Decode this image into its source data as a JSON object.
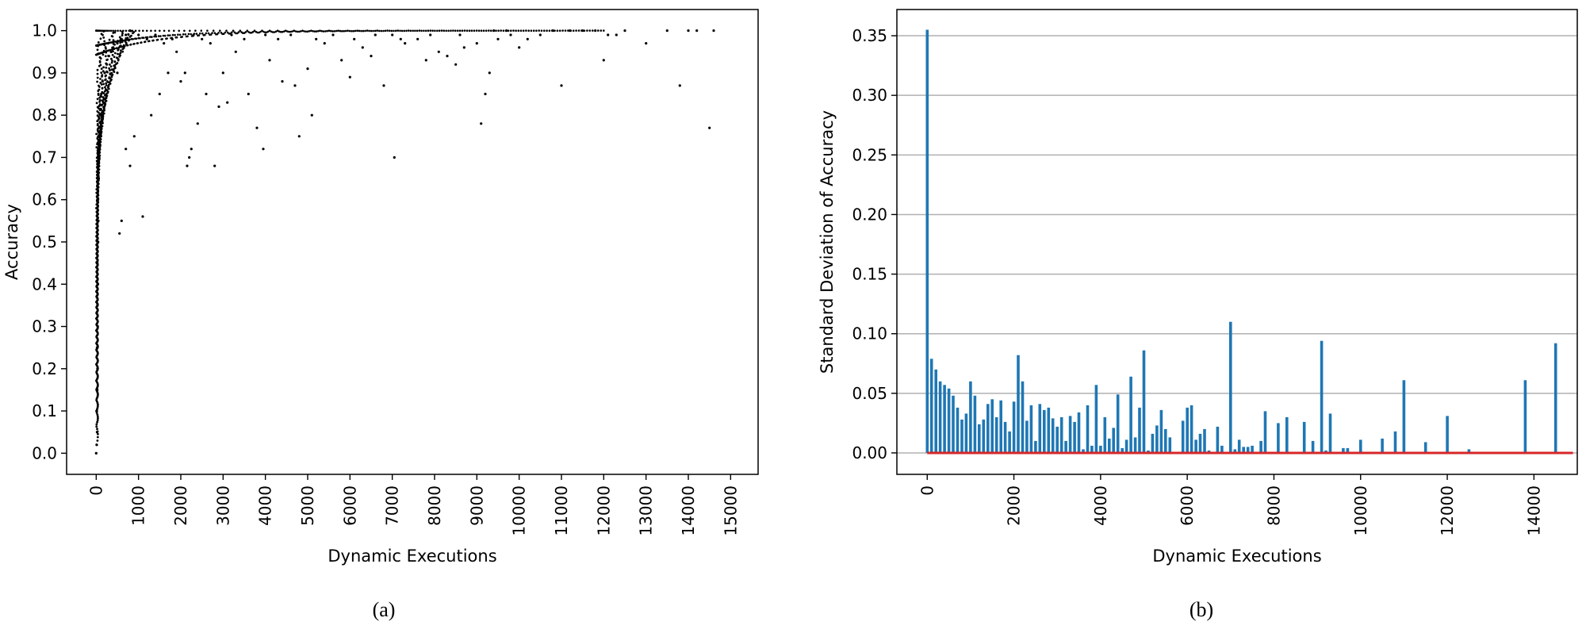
{
  "chart_data": [
    {
      "type": "scatter",
      "caption": "(a)",
      "xlabel": "Dynamic Executions",
      "ylabel": "Accuracy",
      "xlim": [
        -700,
        15650
      ],
      "ylim": [
        -0.05,
        1.05
      ],
      "xticks": [
        0,
        1000,
        2000,
        3000,
        4000,
        5000,
        6000,
        7000,
        8000,
        9000,
        10000,
        11000,
        12000,
        13000,
        14000,
        15000
      ],
      "xtick_labels": [
        "0",
        "1000",
        "2000",
        "3000",
        "4000",
        "5000",
        "6000",
        "7000",
        "8000",
        "9000",
        "10000",
        "11000",
        "12000",
        "13000",
        "14000",
        "15000"
      ],
      "yticks": [
        0.0,
        0.1,
        0.2,
        0.3,
        0.4,
        0.5,
        0.6,
        0.7,
        0.8,
        0.9,
        1.0
      ],
      "ytick_labels": [
        "0.0",
        "0.1",
        "0.2",
        "0.3",
        "0.4",
        "0.5",
        "0.6",
        "0.7",
        "0.8",
        "0.9",
        "1.0"
      ],
      "grid": false,
      "marker_color": "#000000",
      "points": [
        [
          0,
          0.0
        ],
        [
          10,
          0.02
        ],
        [
          20,
          0.05
        ],
        [
          15,
          0.1
        ],
        [
          25,
          0.15
        ],
        [
          30,
          0.2
        ],
        [
          20,
          0.25
        ],
        [
          35,
          0.3
        ],
        [
          30,
          0.35
        ],
        [
          40,
          0.4
        ],
        [
          25,
          0.45
        ],
        [
          45,
          0.5
        ],
        [
          50,
          0.55
        ],
        [
          40,
          0.6
        ],
        [
          60,
          0.65
        ],
        [
          70,
          0.7
        ],
        [
          80,
          0.75
        ],
        [
          100,
          0.8
        ],
        [
          120,
          0.85
        ],
        [
          150,
          0.88
        ],
        [
          200,
          0.9
        ],
        [
          250,
          0.92
        ],
        [
          300,
          0.94
        ],
        [
          350,
          0.95
        ],
        [
          400,
          0.96
        ],
        [
          500,
          0.97
        ],
        [
          600,
          0.98
        ],
        [
          700,
          0.99
        ],
        [
          800,
          1.0
        ],
        [
          500,
          0.9
        ],
        [
          550,
          0.52
        ],
        [
          600,
          0.55
        ],
        [
          700,
          0.72
        ],
        [
          800,
          0.68
        ],
        [
          900,
          0.75
        ],
        [
          1100,
          0.56
        ],
        [
          1300,
          0.8
        ],
        [
          1500,
          0.85
        ],
        [
          1700,
          0.9
        ],
        [
          1900,
          0.95
        ],
        [
          2000,
          0.88
        ],
        [
          2100,
          0.9
        ],
        [
          2150,
          0.68
        ],
        [
          2200,
          0.7
        ],
        [
          2250,
          0.72
        ],
        [
          2400,
          0.78
        ],
        [
          2600,
          0.85
        ],
        [
          2800,
          0.68
        ],
        [
          2900,
          0.82
        ],
        [
          3000,
          0.9
        ],
        [
          3100,
          0.83
        ],
        [
          3300,
          0.95
        ],
        [
          3600,
          0.85
        ],
        [
          3800,
          0.77
        ],
        [
          3950,
          0.72
        ],
        [
          4100,
          0.93
        ],
        [
          4400,
          0.88
        ],
        [
          4700,
          0.87
        ],
        [
          4800,
          0.75
        ],
        [
          5000,
          0.91
        ],
        [
          5100,
          0.8
        ],
        [
          5400,
          0.97
        ],
        [
          5800,
          0.93
        ],
        [
          6000,
          0.89
        ],
        [
          6300,
          0.96
        ],
        [
          6500,
          0.94
        ],
        [
          6800,
          0.87
        ],
        [
          7000,
          0.99
        ],
        [
          7050,
          0.7
        ],
        [
          7300,
          0.97
        ],
        [
          7600,
          0.98
        ],
        [
          7800,
          0.93
        ],
        [
          8100,
          0.95
        ],
        [
          8300,
          0.94
        ],
        [
          8500,
          0.92
        ],
        [
          8700,
          0.96
        ],
        [
          9000,
          0.97
        ],
        [
          9100,
          0.78
        ],
        [
          9200,
          0.85
        ],
        [
          9300,
          0.9
        ],
        [
          9500,
          0.98
        ],
        [
          9800,
          0.99
        ],
        [
          10000,
          0.96
        ],
        [
          10200,
          0.98
        ],
        [
          10500,
          0.99
        ],
        [
          11000,
          0.87
        ],
        [
          11200,
          1.0
        ],
        [
          11800,
          1.0
        ],
        [
          12000,
          0.93
        ],
        [
          12300,
          0.99
        ],
        [
          12500,
          1.0
        ],
        [
          13000,
          0.97
        ],
        [
          13500,
          1.0
        ],
        [
          13800,
          0.87
        ],
        [
          14200,
          1.0
        ],
        [
          14500,
          0.77
        ],
        [
          14600,
          1.0
        ],
        [
          1000,
          0.99
        ],
        [
          1200,
          0.98
        ],
        [
          1400,
          0.99
        ],
        [
          1600,
          0.97
        ],
        [
          1800,
          0.98
        ],
        [
          2300,
          0.99
        ],
        [
          2500,
          0.98
        ],
        [
          2700,
          0.97
        ],
        [
          3200,
          0.99
        ],
        [
          3500,
          0.98
        ],
        [
          4000,
          0.99
        ],
        [
          4300,
          0.98
        ],
        [
          4600,
          0.99
        ],
        [
          5200,
          0.98
        ],
        [
          5600,
          0.99
        ],
        [
          6100,
          0.98
        ],
        [
          6600,
          0.99
        ],
        [
          7200,
          0.98
        ],
        [
          7900,
          0.99
        ],
        [
          8600,
          0.99
        ],
        [
          9400,
          1.0
        ],
        [
          9700,
          1.0
        ],
        [
          10800,
          1.0
        ],
        [
          11500,
          1.0
        ],
        [
          12100,
          0.99
        ],
        [
          14000,
          1.0
        ]
      ]
    },
    {
      "type": "bar",
      "caption": "(b)",
      "xlabel": "Dynamic Executions",
      "ylabel": "Standard Deviation of Accuracy",
      "xlim": [
        -700,
        15000
      ],
      "ylim": [
        -0.018,
        0.372
      ],
      "xticks": [
        0,
        2000,
        4000,
        6000,
        8000,
        10000,
        12000,
        14000
      ],
      "xtick_labels": [
        "0",
        "2000",
        "4000",
        "6000",
        "8000",
        "10000",
        "12000",
        "14000"
      ],
      "yticks": [
        0.0,
        0.05,
        0.1,
        0.15,
        0.2,
        0.25,
        0.3,
        0.35
      ],
      "ytick_labels": [
        "0.00",
        "0.05",
        "0.10",
        "0.15",
        "0.20",
        "0.25",
        "0.30",
        "0.35"
      ],
      "grid": "horizontal",
      "bar_color": "#1f77b4",
      "baseline_color": "#d62728",
      "baseline_range": [
        0,
        14900
      ],
      "x": [
        0,
        100,
        200,
        300,
        400,
        500,
        600,
        700,
        800,
        900,
        1000,
        1100,
        1200,
        1300,
        1400,
        1500,
        1600,
        1700,
        1800,
        1900,
        2000,
        2100,
        2200,
        2300,
        2400,
        2500,
        2600,
        2700,
        2800,
        2900,
        3000,
        3100,
        3200,
        3300,
        3400,
        3500,
        3600,
        3700,
        3800,
        3900,
        4000,
        4100,
        4200,
        4300,
        4400,
        4500,
        4600,
        4700,
        4800,
        4900,
        5000,
        5100,
        5200,
        5300,
        5400,
        5500,
        5600,
        5700,
        5800,
        5900,
        6000,
        6100,
        6200,
        6300,
        6400,
        6500,
        6600,
        6700,
        6800,
        6900,
        7000,
        7100,
        7200,
        7300,
        7400,
        7500,
        7600,
        7700,
        7800,
        7900,
        8000,
        8100,
        8200,
        8300,
        8400,
        8500,
        8600,
        8700,
        8800,
        8900,
        9000,
        9100,
        9200,
        9300,
        9400,
        9500,
        9600,
        9700,
        9800,
        9900,
        10000,
        10500,
        10800,
        11000,
        11500,
        12000,
        12500,
        13800,
        14500
      ],
      "values": [
        0.355,
        0.079,
        0.07,
        0.06,
        0.057,
        0.054,
        0.048,
        0.038,
        0.028,
        0.033,
        0.06,
        0.048,
        0.024,
        0.028,
        0.041,
        0.045,
        0.03,
        0.044,
        0.026,
        0.018,
        0.043,
        0.082,
        0.06,
        0.027,
        0.04,
        0.01,
        0.041,
        0.036,
        0.038,
        0.029,
        0.022,
        0.03,
        0.01,
        0.031,
        0.026,
        0.034,
        0.003,
        0.04,
        0.006,
        0.057,
        0.006,
        0.03,
        0.012,
        0.021,
        0.049,
        0.004,
        0.011,
        0.064,
        0.013,
        0.038,
        0.086,
        0.002,
        0.016,
        0.023,
        0.036,
        0.02,
        0.013,
        0.001,
        0.001,
        0.027,
        0.038,
        0.04,
        0.011,
        0.016,
        0.02,
        0.002,
        0.001,
        0.022,
        0.006,
        0.001,
        0.11,
        0.003,
        0.011,
        0.005,
        0.005,
        0.006,
        0.001,
        0.01,
        0.035,
        0.001,
        0.001,
        0.025,
        0.001,
        0.03,
        0.001,
        0.001,
        0.001,
        0.026,
        0.001,
        0.01,
        0.001,
        0.094,
        0.002,
        0.033,
        0.001,
        0.001,
        0.004,
        0.004,
        0.001,
        0.001,
        0.011,
        0.012,
        0.018,
        0.061,
        0.009,
        0.031,
        0.003,
        0.061,
        0.092
      ]
    }
  ]
}
